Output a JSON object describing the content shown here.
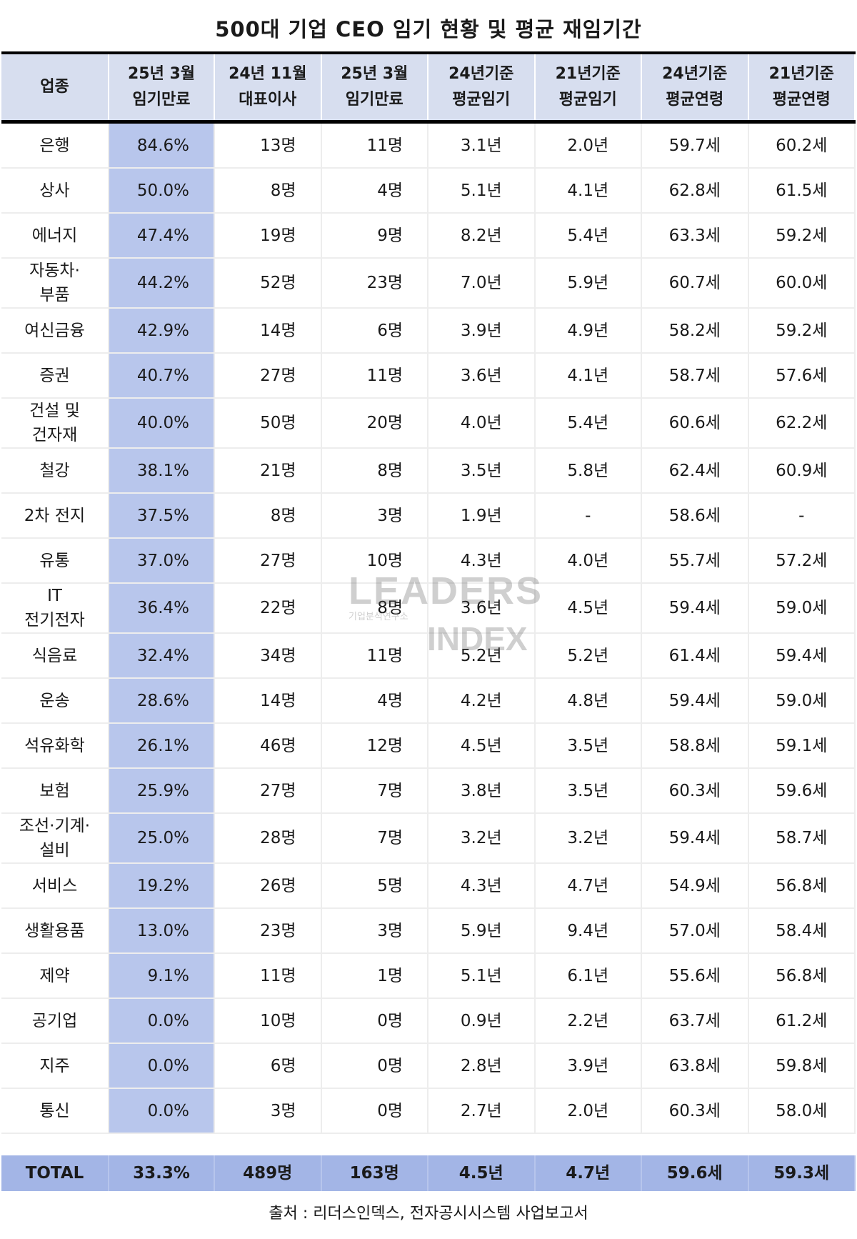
{
  "title": "500대 기업 CEO 임기 현황 및 평균 재임기간",
  "headers": [
    [
      "업종",
      ""
    ],
    [
      "25년 3월",
      "임기만료"
    ],
    [
      "24년 11월",
      "대표이사"
    ],
    [
      "25년 3월",
      "임기만료"
    ],
    [
      "24년기준",
      "평균임기"
    ],
    [
      "21년기준",
      "평균임기"
    ],
    [
      "24년기준",
      "평균연령"
    ],
    [
      "21년기준",
      "평균연령"
    ]
  ],
  "chart_data": {
    "type": "table",
    "title": "500대 기업 CEO 임기 현황 및 평균 재임기간",
    "rows": [
      {
        "industry": [
          "은행"
        ],
        "expire_pct": "84.6%",
        "ceo_count": "13명",
        "expire_count": "11명",
        "tenure24": "3.1년",
        "tenure21": "2.0년",
        "age24": "59.7세",
        "age21": "60.2세"
      },
      {
        "industry": [
          "상사"
        ],
        "expire_pct": "50.0%",
        "ceo_count": "8명",
        "expire_count": "4명",
        "tenure24": "5.1년",
        "tenure21": "4.1년",
        "age24": "62.8세",
        "age21": "61.5세"
      },
      {
        "industry": [
          "에너지"
        ],
        "expire_pct": "47.4%",
        "ceo_count": "19명",
        "expire_count": "9명",
        "tenure24": "8.2년",
        "tenure21": "5.4년",
        "age24": "63.3세",
        "age21": "59.2세"
      },
      {
        "industry": [
          "자동차·",
          "부품"
        ],
        "expire_pct": "44.2%",
        "ceo_count": "52명",
        "expire_count": "23명",
        "tenure24": "7.0년",
        "tenure21": "5.9년",
        "age24": "60.7세",
        "age21": "60.0세"
      },
      {
        "industry": [
          "여신금융"
        ],
        "expire_pct": "42.9%",
        "ceo_count": "14명",
        "expire_count": "6명",
        "tenure24": "3.9년",
        "tenure21": "4.9년",
        "age24": "58.2세",
        "age21": "59.2세"
      },
      {
        "industry": [
          "증권"
        ],
        "expire_pct": "40.7%",
        "ceo_count": "27명",
        "expire_count": "11명",
        "tenure24": "3.6년",
        "tenure21": "4.1년",
        "age24": "58.7세",
        "age21": "57.6세"
      },
      {
        "industry": [
          "건설 및",
          "건자재"
        ],
        "expire_pct": "40.0%",
        "ceo_count": "50명",
        "expire_count": "20명",
        "tenure24": "4.0년",
        "tenure21": "5.4년",
        "age24": "60.6세",
        "age21": "62.2세"
      },
      {
        "industry": [
          "철강"
        ],
        "expire_pct": "38.1%",
        "ceo_count": "21명",
        "expire_count": "8명",
        "tenure24": "3.5년",
        "tenure21": "5.8년",
        "age24": "62.4세",
        "age21": "60.9세"
      },
      {
        "industry": [
          "2차 전지"
        ],
        "expire_pct": "37.5%",
        "ceo_count": "8명",
        "expire_count": "3명",
        "tenure24": "1.9년",
        "tenure21": "-",
        "age24": "58.6세",
        "age21": "-"
      },
      {
        "industry": [
          "유통"
        ],
        "expire_pct": "37.0%",
        "ceo_count": "27명",
        "expire_count": "10명",
        "tenure24": "4.3년",
        "tenure21": "4.0년",
        "age24": "55.7세",
        "age21": "57.2세"
      },
      {
        "industry": [
          "IT",
          "전기전자"
        ],
        "expire_pct": "36.4%",
        "ceo_count": "22명",
        "expire_count": "8명",
        "tenure24": "3.6년",
        "tenure21": "4.5년",
        "age24": "59.4세",
        "age21": "59.0세"
      },
      {
        "industry": [
          "식음료"
        ],
        "expire_pct": "32.4%",
        "ceo_count": "34명",
        "expire_count": "11명",
        "tenure24": "5.2년",
        "tenure21": "5.2년",
        "age24": "61.4세",
        "age21": "59.4세"
      },
      {
        "industry": [
          "운송"
        ],
        "expire_pct": "28.6%",
        "ceo_count": "14명",
        "expire_count": "4명",
        "tenure24": "4.2년",
        "tenure21": "4.8년",
        "age24": "59.4세",
        "age21": "59.0세"
      },
      {
        "industry": [
          "석유화학"
        ],
        "expire_pct": "26.1%",
        "ceo_count": "46명",
        "expire_count": "12명",
        "tenure24": "4.5년",
        "tenure21": "3.5년",
        "age24": "58.8세",
        "age21": "59.1세"
      },
      {
        "industry": [
          "보험"
        ],
        "expire_pct": "25.9%",
        "ceo_count": "27명",
        "expire_count": "7명",
        "tenure24": "3.8년",
        "tenure21": "3.5년",
        "age24": "60.3세",
        "age21": "59.6세"
      },
      {
        "industry": [
          "조선·기계·",
          "설비"
        ],
        "expire_pct": "25.0%",
        "ceo_count": "28명",
        "expire_count": "7명",
        "tenure24": "3.2년",
        "tenure21": "3.2년",
        "age24": "59.4세",
        "age21": "58.7세"
      },
      {
        "industry": [
          "서비스"
        ],
        "expire_pct": "19.2%",
        "ceo_count": "26명",
        "expire_count": "5명",
        "tenure24": "4.3년",
        "tenure21": "4.7년",
        "age24": "54.9세",
        "age21": "56.8세"
      },
      {
        "industry": [
          "생활용품"
        ],
        "expire_pct": "13.0%",
        "ceo_count": "23명",
        "expire_count": "3명",
        "tenure24": "5.9년",
        "tenure21": "9.4년",
        "age24": "57.0세",
        "age21": "58.4세"
      },
      {
        "industry": [
          "제약"
        ],
        "expire_pct": "9.1%",
        "ceo_count": "11명",
        "expire_count": "1명",
        "tenure24": "5.1년",
        "tenure21": "6.1년",
        "age24": "55.6세",
        "age21": "56.8세"
      },
      {
        "industry": [
          "공기업"
        ],
        "expire_pct": "0.0%",
        "ceo_count": "10명",
        "expire_count": "0명",
        "tenure24": "0.9년",
        "tenure21": "2.2년",
        "age24": "63.7세",
        "age21": "61.2세"
      },
      {
        "industry": [
          "지주"
        ],
        "expire_pct": "0.0%",
        "ceo_count": "6명",
        "expire_count": "0명",
        "tenure24": "2.8년",
        "tenure21": "3.9년",
        "age24": "63.8세",
        "age21": "59.8세"
      },
      {
        "industry": [
          "통신"
        ],
        "expire_pct": "0.0%",
        "ceo_count": "3명",
        "expire_count": "0명",
        "tenure24": "2.7년",
        "tenure21": "2.0년",
        "age24": "60.3세",
        "age21": "58.0세"
      }
    ],
    "total": {
      "label": "TOTAL",
      "expire_pct": "33.3%",
      "ceo_count": "489명",
      "expire_count": "163명",
      "tenure24": "4.5년",
      "tenure21": "4.7년",
      "age24": "59.6세",
      "age21": "59.3세"
    }
  },
  "watermark": {
    "line1": "LEADERS",
    "line2": "기업분석연구소",
    "line3": "INDEX"
  },
  "source": "출처 : 리더스인덱스, 전자공시시스템 사업보고서",
  "colors": {
    "header_bg": "#d7deef",
    "highlight_col": "#b8c6ec",
    "total_bg": "#a3b5e6"
  }
}
